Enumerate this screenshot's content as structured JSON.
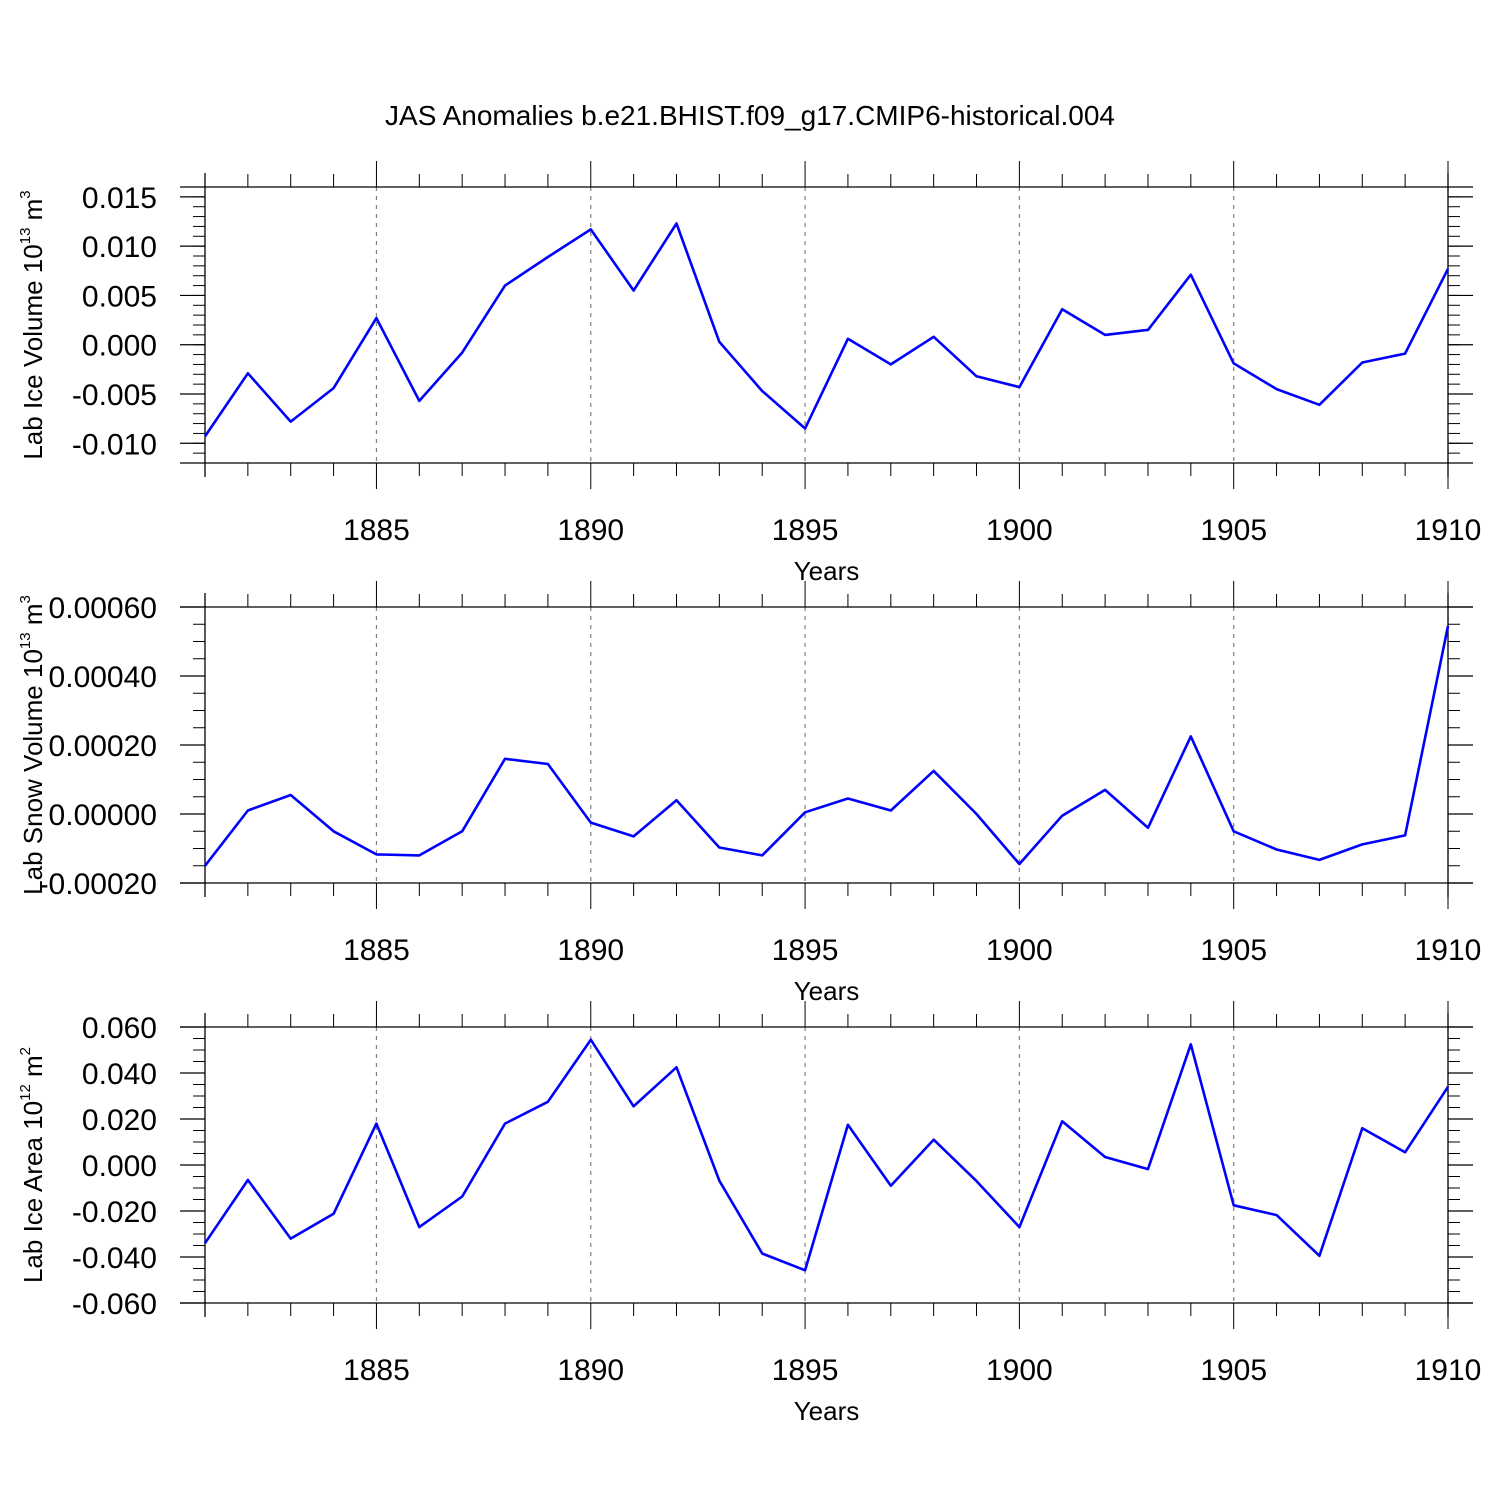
{
  "title": "JAS Anomalies b.e21.BHIST.f09_g17.CMIP6-historical.004",
  "colors": {
    "line": "#0000ff",
    "axis": "#000000",
    "grid": "#7f7f7f"
  },
  "chart_data": [
    {
      "type": "line",
      "ylabel_main": "Lab Ice Volume 10",
      "ylabel_exp": "13",
      "ylabel_unit": " m",
      "ylabel_unit_exp": "3",
      "xlabel": "Years",
      "xlim": [
        1881,
        1910
      ],
      "ylim": [
        -0.012,
        0.016
      ],
      "x_ticks": [
        1885,
        1890,
        1895,
        1900,
        1905,
        1910
      ],
      "y_ticks": [
        -0.01,
        -0.005,
        0.0,
        0.005,
        0.01,
        0.015
      ],
      "y_tick_labels": [
        "-0.010",
        "-0.005",
        "0.000",
        "0.005",
        "0.010",
        "0.015"
      ],
      "y_minor_step": 0.001,
      "x": [
        1881,
        1882,
        1883,
        1884,
        1885,
        1886,
        1887,
        1888,
        1889,
        1890,
        1891,
        1892,
        1893,
        1894,
        1895,
        1896,
        1897,
        1898,
        1899,
        1900,
        1901,
        1902,
        1903,
        1904,
        1905,
        1906,
        1907,
        1908,
        1909,
        1910
      ],
      "series": [
        {
          "name": "Lab Ice Volume",
          "values": [
            -0.0093,
            -0.0029,
            -0.0078,
            -0.0044,
            0.0027,
            -0.0057,
            -0.0008,
            0.006,
            0.0089,
            0.0117,
            0.0055,
            0.0123,
            0.0003,
            -0.0047,
            -0.0085,
            0.0006,
            -0.002,
            0.0008,
            -0.0032,
            -0.0043,
            0.0036,
            0.001,
            0.0015,
            0.0071,
            -0.0019,
            -0.0045,
            -0.0061,
            -0.0018,
            -0.0009,
            0.0077
          ]
        }
      ]
    },
    {
      "type": "line",
      "ylabel_main": "Lab Snow Volume 10",
      "ylabel_exp": "13",
      "ylabel_unit": " m",
      "ylabel_unit_exp": "3",
      "xlabel": "Years",
      "xlim": [
        1881,
        1910
      ],
      "ylim": [
        -0.0002,
        0.0006
      ],
      "x_ticks": [
        1885,
        1890,
        1895,
        1900,
        1905,
        1910
      ],
      "y_ticks": [
        -0.0002,
        0.0,
        0.0002,
        0.0004,
        0.0006
      ],
      "y_tick_labels": [
        "-0.00020",
        "0.00000",
        "0.00020",
        "0.00040",
        "0.00060"
      ],
      "y_minor_step": 5e-05,
      "x": [
        1881,
        1882,
        1883,
        1884,
        1885,
        1886,
        1887,
        1888,
        1889,
        1890,
        1891,
        1892,
        1893,
        1894,
        1895,
        1896,
        1897,
        1898,
        1899,
        1900,
        1901,
        1902,
        1903,
        1904,
        1905,
        1906,
        1907,
        1908,
        1909,
        1910
      ],
      "series": [
        {
          "name": "Lab Snow Volume",
          "values": [
            -0.00015,
            1e-05,
            5.5e-05,
            -5e-05,
            -0.000117,
            -0.00012,
            -5e-05,
            0.00016,
            0.000145,
            -2.5e-05,
            -6.5e-05,
            4e-05,
            -9.7e-05,
            -0.00012,
            5e-06,
            4.5e-05,
            1e-05,
            0.000125,
            0.0,
            -0.000145,
            -5e-06,
            7e-05,
            -4e-05,
            0.000225,
            -5e-05,
            -0.000103,
            -0.000133,
            -8.8e-05,
            -6.2e-05,
            0.000545
          ]
        }
      ]
    },
    {
      "type": "line",
      "ylabel_main": "Lab Ice Area 10",
      "ylabel_exp": "12",
      "ylabel_unit": " m",
      "ylabel_unit_exp": "2",
      "xlabel": "Years",
      "xlim": [
        1881,
        1910
      ],
      "ylim": [
        -0.06,
        0.06
      ],
      "x_ticks": [
        1885,
        1890,
        1895,
        1900,
        1905,
        1910
      ],
      "y_ticks": [
        -0.06,
        -0.04,
        -0.02,
        0.0,
        0.02,
        0.04,
        0.06
      ],
      "y_tick_labels": [
        "-0.060",
        "-0.040",
        "-0.020",
        "0.000",
        "0.020",
        "0.040",
        "0.060"
      ],
      "y_minor_step": 0.005,
      "x": [
        1881,
        1882,
        1883,
        1884,
        1885,
        1886,
        1887,
        1888,
        1889,
        1890,
        1891,
        1892,
        1893,
        1894,
        1895,
        1896,
        1897,
        1898,
        1899,
        1900,
        1901,
        1902,
        1903,
        1904,
        1905,
        1906,
        1907,
        1908,
        1909,
        1910
      ],
      "series": [
        {
          "name": "Lab Ice Area",
          "values": [
            -0.034,
            -0.0065,
            -0.032,
            -0.0212,
            0.018,
            -0.027,
            -0.0137,
            0.018,
            0.0275,
            0.0545,
            0.0255,
            0.0425,
            -0.0068,
            -0.0385,
            -0.0458,
            0.0175,
            -0.009,
            0.011,
            -0.007,
            -0.027,
            0.019,
            0.0035,
            -0.0018,
            0.0525,
            -0.0175,
            -0.0218,
            -0.0395,
            0.016,
            0.0055,
            0.034
          ]
        }
      ]
    }
  ]
}
